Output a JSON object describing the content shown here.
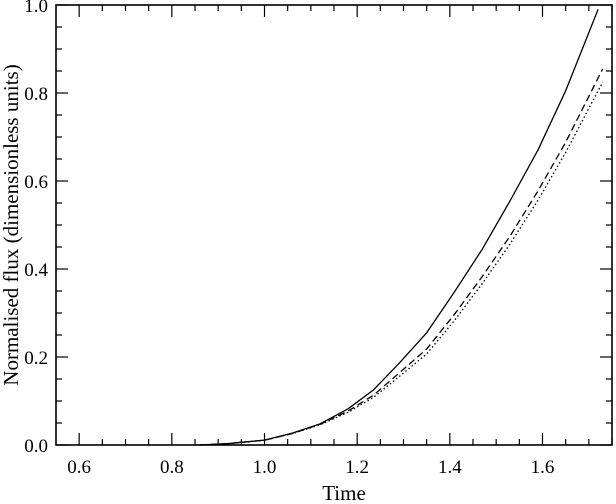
{
  "chart_data": {
    "type": "line",
    "xlabel": "Time",
    "ylabel": "Normalised flux (dimensionless units)",
    "xlim": [
      0.55,
      1.75
    ],
    "ylim": [
      0.0,
      1.0
    ],
    "x_ticks": [
      0.6,
      0.8,
      1.0,
      1.2,
      1.4,
      1.6
    ],
    "y_ticks": [
      0.0,
      0.2,
      0.4,
      0.6,
      0.8,
      1.0
    ],
    "x_tick_labels": [
      "0.6",
      "0.8",
      "1.0",
      "1.2",
      "1.4",
      "1.6"
    ],
    "y_tick_labels": [
      "0.0",
      "0.2",
      "0.4",
      "0.6",
      "0.8",
      "1.0"
    ],
    "grid": false,
    "series": [
      {
        "style": "solid",
        "color": "#000000",
        "x": [
          0.86,
          0.92,
          1.0,
          1.06,
          1.12,
          1.18,
          1.235,
          1.29,
          1.35,
          1.41,
          1.47,
          1.53,
          1.59,
          1.65,
          1.72
        ],
        "y": [
          0.0,
          0.003,
          0.011,
          0.027,
          0.048,
          0.082,
          0.125,
          0.185,
          0.255,
          0.348,
          0.445,
          0.555,
          0.67,
          0.805,
          0.99
        ]
      },
      {
        "style": "dashed",
        "color": "#000000",
        "x": [
          0.86,
          0.92,
          1.0,
          1.06,
          1.12,
          1.18,
          1.235,
          1.29,
          1.35,
          1.41,
          1.47,
          1.53,
          1.59,
          1.65,
          1.73
        ],
        "y": [
          0.0,
          0.003,
          0.011,
          0.026,
          0.047,
          0.077,
          0.113,
          0.163,
          0.218,
          0.297,
          0.383,
          0.475,
          0.577,
          0.688,
          0.855
        ]
      },
      {
        "style": "dotted",
        "color": "#000000",
        "x": [
          0.86,
          0.92,
          1.0,
          1.06,
          1.12,
          1.18,
          1.235,
          1.29,
          1.35,
          1.41,
          1.47,
          1.53,
          1.59,
          1.65,
          1.73
        ],
        "y": [
          0.0,
          0.003,
          0.011,
          0.026,
          0.046,
          0.074,
          0.108,
          0.155,
          0.207,
          0.283,
          0.367,
          0.457,
          0.556,
          0.665,
          0.825
        ]
      }
    ]
  }
}
